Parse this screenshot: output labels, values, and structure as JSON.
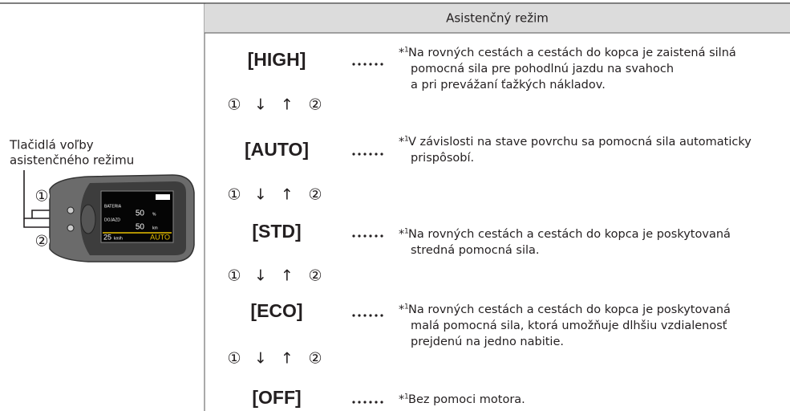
{
  "header": {
    "title": "Asistenčný režim"
  },
  "device": {
    "label_lines": [
      "Tlačidlá voľby",
      "asistenčného režimu"
    ],
    "callouts": [
      "①",
      "②"
    ],
    "screen": {
      "battery_label": "BATERIA",
      "battery_value": "50",
      "battery_unit": "%",
      "range_label": "DOJAZD",
      "range_value": "50",
      "range_unit": "km",
      "speed_value": "25",
      "speed_unit": "km/h",
      "mode": "AUTO"
    }
  },
  "note_marker": {
    "asterisk": "*",
    "number": "1"
  },
  "modes": [
    {
      "label": "[HIGH]",
      "lines": [
        "Na rovných cestách a cestách do kopca je zaistená silná",
        "pomocná sila pre pohodlnú jazdu na svahoch",
        "a pri prevážaní ťažkých nákladov."
      ]
    },
    {
      "label": "[AUTO]",
      "lines": [
        "V závislosti na stave povrchu sa pomocná sila automaticky",
        "prispôsobí."
      ]
    },
    {
      "label": "[STD]",
      "lines": [
        "Na rovných cestách a cestách do kopca je poskytovaná",
        "stredná pomocná sila."
      ]
    },
    {
      "label": "[ECO]",
      "lines": [
        "Na rovných cestách a cestách do kopca je poskytovaná",
        "malá pomocná sila, ktorá umožňuje dlhšiu vzdialenosť",
        "prejdenú na jedno nabitie."
      ]
    },
    {
      "label": "[OFF]",
      "lines": [
        "Bez pomoci motora."
      ]
    }
  ],
  "transition": {
    "down_button": "①",
    "down": "↓",
    "up": "↑",
    "up_button": "②"
  }
}
